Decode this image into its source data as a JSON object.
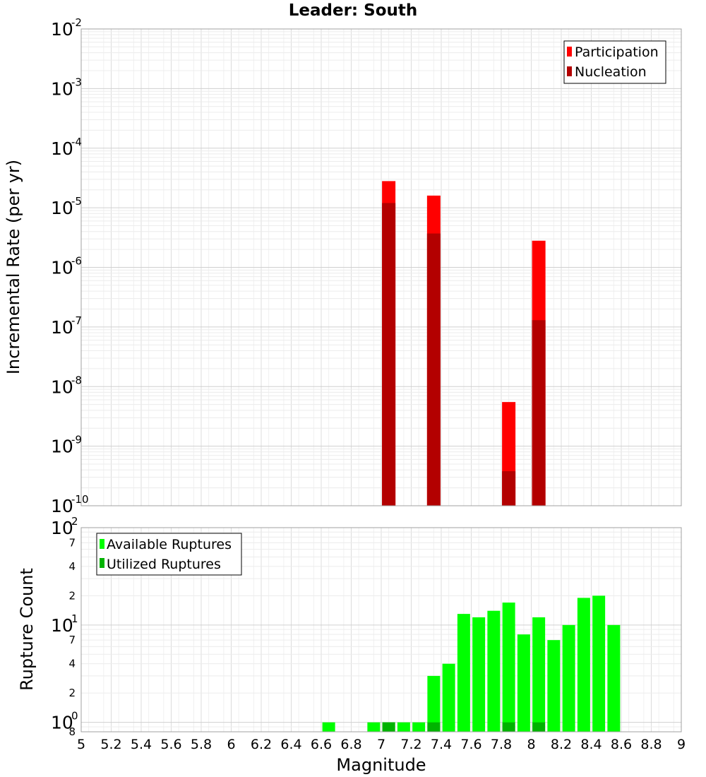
{
  "chart_data": [
    {
      "type": "bar",
      "title": "Leader: South",
      "xlabel": "",
      "ylabel": "Incremental Rate (per yr)",
      "yscale": "log",
      "ylim": [
        1e-10,
        0.01
      ],
      "xlim": [
        5,
        9
      ],
      "grid": true,
      "legend_position": "top-right",
      "series": [
        {
          "name": "Participation",
          "color": "#ff0000",
          "x": [
            7.05,
            7.35,
            7.85,
            8.05
          ],
          "values": [
            2.8e-05,
            1.6e-05,
            5.5e-09,
            2.8e-06
          ]
        },
        {
          "name": "Nucleation",
          "color": "#b30000",
          "x": [
            7.05,
            7.35,
            7.85,
            8.05
          ],
          "values": [
            1.2e-05,
            3.7e-06,
            3.8e-10,
            1.3e-07
          ]
        }
      ],
      "y_ticks": [
        {
          "base": "10",
          "exp": "-10"
        },
        {
          "base": "10",
          "exp": "-9"
        },
        {
          "base": "10",
          "exp": "-8"
        },
        {
          "base": "10",
          "exp": "-7"
        },
        {
          "base": "10",
          "exp": "-6"
        },
        {
          "base": "10",
          "exp": "-5"
        },
        {
          "base": "10",
          "exp": "-4"
        },
        {
          "base": "10",
          "exp": "-3"
        },
        {
          "base": "10",
          "exp": "-2"
        }
      ]
    },
    {
      "type": "bar",
      "title": "",
      "xlabel": "Magnitude",
      "ylabel": "Rupture Count",
      "yscale": "log",
      "ylim": [
        0.8,
        100
      ],
      "xlim": [
        5,
        9
      ],
      "grid": true,
      "legend_position": "top-left",
      "x_ticks": [
        "5",
        "5.2",
        "5.4",
        "5.6",
        "5.8",
        "6",
        "6.2",
        "6.4",
        "6.6",
        "6.8",
        "7",
        "7.2",
        "7.4",
        "7.6",
        "7.8",
        "8",
        "8.2",
        "8.4",
        "8.6",
        "8.8",
        "9"
      ],
      "series": [
        {
          "name": "Available Ruptures",
          "color": "#00ff00",
          "x": [
            6.65,
            6.95,
            7.05,
            7.15,
            7.25,
            7.35,
            7.45,
            7.55,
            7.65,
            7.75,
            7.85,
            7.95,
            8.05,
            8.15,
            8.25,
            8.35,
            8.45,
            8.55
          ],
          "values": [
            1,
            1,
            1,
            1,
            1,
            3,
            4,
            13,
            12,
            14,
            17,
            8,
            12,
            7,
            10,
            19,
            20,
            10
          ]
        },
        {
          "name": "Utilized Ruptures",
          "color": "#00b300",
          "x": [
            7.05,
            7.35,
            7.85,
            8.05
          ],
          "values": [
            1,
            1,
            1,
            1
          ]
        }
      ],
      "y_ticks": [
        {
          "base": "10",
          "exp": "0"
        },
        {
          "base": "10",
          "exp": "1"
        },
        {
          "base": "10",
          "exp": "2"
        }
      ],
      "y_minor_ticks": [
        {
          "value": 0.8,
          "label": "8"
        },
        {
          "value": 2,
          "label": "2"
        },
        {
          "value": 4,
          "label": "4"
        },
        {
          "value": 7,
          "label": "7"
        },
        {
          "value": 20,
          "label": "2"
        },
        {
          "value": 40,
          "label": "4"
        },
        {
          "value": 70,
          "label": "7"
        }
      ]
    }
  ]
}
